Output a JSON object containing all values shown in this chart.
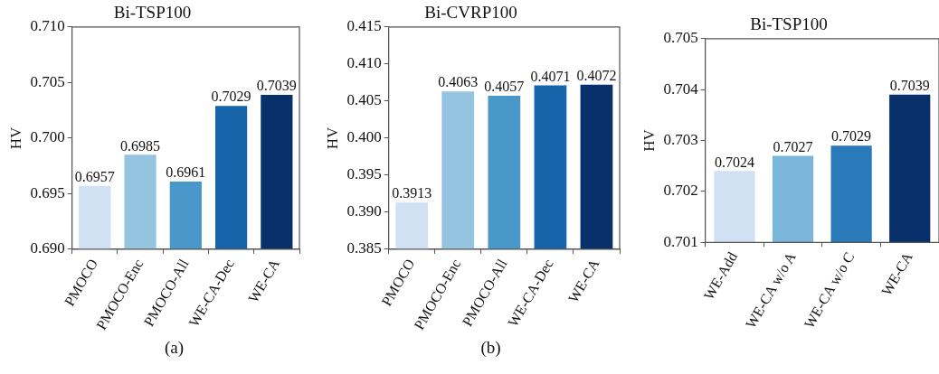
{
  "chart_data": [
    {
      "type": "bar",
      "title": "Bi-TSP100",
      "ylabel": "HV",
      "categories": [
        "PMOCO",
        "PMOCO-Enc",
        "PMOCO-All",
        "WE-CA-Dec",
        "WE-CA"
      ],
      "values": [
        0.6957,
        0.6985,
        0.6961,
        0.7029,
        0.7039
      ],
      "colors": [
        "#cfe1f2",
        "#94c4df",
        "#4a98c9",
        "#1764ab",
        "#08306b"
      ],
      "ylim": [
        0.69,
        0.71
      ],
      "yticks": [
        "0.690",
        "0.695",
        "0.700",
        "0.705",
        "0.710"
      ],
      "data_labels": true,
      "grid": false,
      "legend": false,
      "annotations": [
        "(a)"
      ]
    },
    {
      "type": "bar",
      "title": "Bi-CVRP100",
      "ylabel": "HV",
      "categories": [
        "PMOCO",
        "PMOCO-Enc",
        "PMOCO-All",
        "WE-CA-Dec",
        "WE-CA"
      ],
      "values": [
        0.3913,
        0.4063,
        0.4057,
        0.4071,
        0.4072
      ],
      "colors": [
        "#cfe1f2",
        "#94c4df",
        "#4a98c9",
        "#1764ab",
        "#08306b"
      ],
      "ylim": [
        0.385,
        0.415
      ],
      "yticks": [
        {
          "value": 0.385,
          "label": "0.385"
        },
        {
          "value": 0.39,
          "label": "0.390"
        },
        {
          "value": 0.395,
          "label": "0.395"
        },
        {
          "value": 0.4,
          "label": "0.400"
        },
        {
          "value": 0.405,
          "label": "0.405"
        },
        {
          "value": 0.41,
          "label": "0.410"
        },
        {
          "value": 0.415,
          "label": "0.415"
        }
      ],
      "data_labels": true,
      "grid": false,
      "legend": false,
      "annotations": [
        "(b)"
      ]
    },
    {
      "type": "bar",
      "title": "Bi-TSP100",
      "ylabel": "HV",
      "categories": [
        "WE-Add",
        "WE-CA w/o A",
        "WE-CA w/o C",
        "WE-CA"
      ],
      "values": [
        0.7024,
        0.7027,
        0.7029,
        0.7039
      ],
      "colors": [
        "#cfe1f2",
        "#7ab6d9",
        "#2a7ab9",
        "#08306b"
      ],
      "ylim": [
        0.701,
        0.705
      ],
      "yticks": [
        0.701,
        0.702,
        0.703,
        0.704,
        0.705
      ],
      "data_labels": true,
      "grid": false,
      "legend": false
    }
  ]
}
